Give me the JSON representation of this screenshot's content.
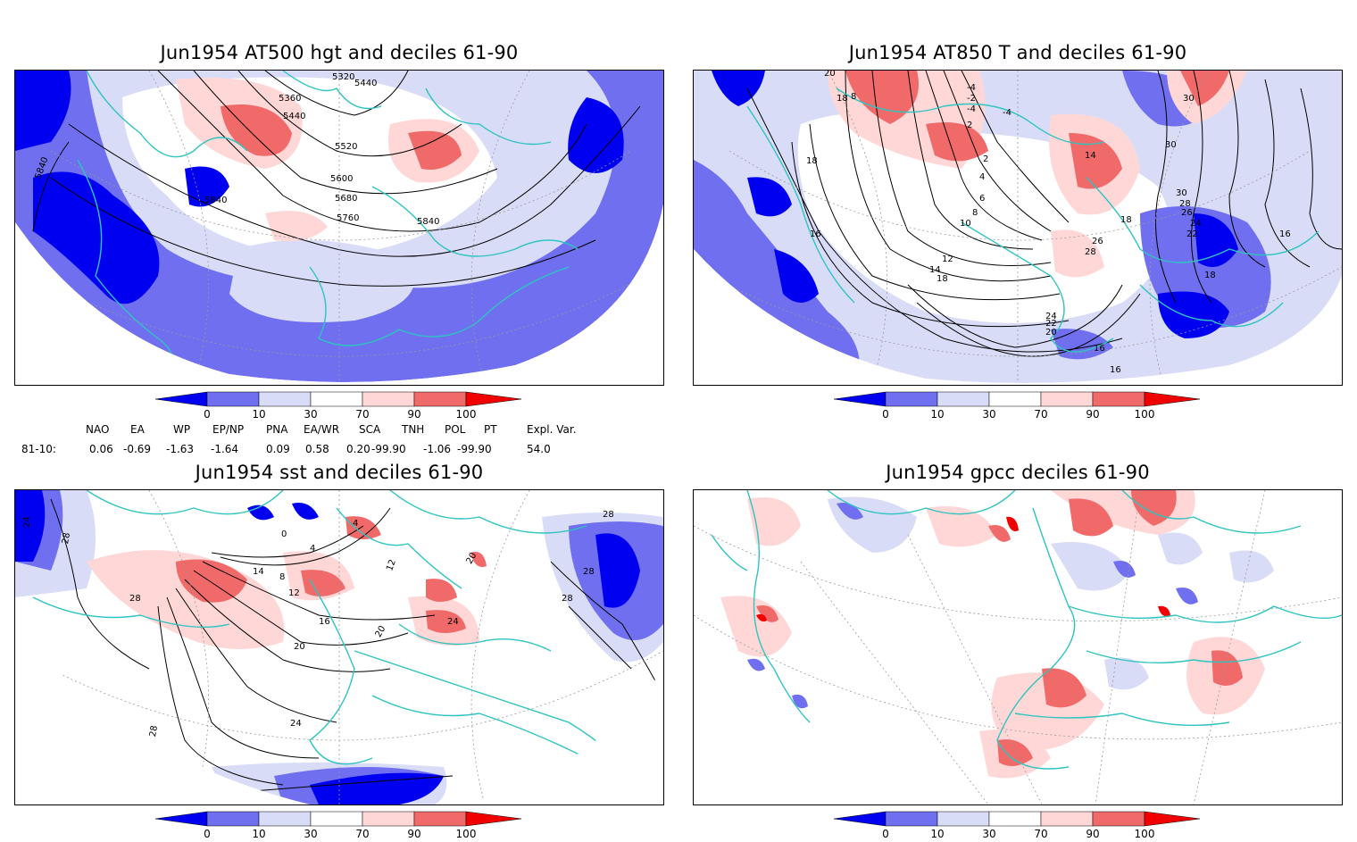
{
  "colors": {
    "d0": "#0000f0",
    "d10": "#6f6ff0",
    "d30": "#d8dcf7",
    "mid": "#ffffff",
    "d70": "#ffd7d7",
    "d90": "#f06a6a",
    "d100": "#f00000",
    "coast": "#2ec4c0",
    "grid": "#9a9a9a"
  },
  "colorbar_ticks": [
    "0",
    "10",
    "30",
    "70",
    "90",
    "100"
  ],
  "panels": [
    {
      "title": "Jun1954 AT500 hgt and deciles 61-90",
      "contour_labels": [
        "5320",
        "5360",
        "5440",
        "5440",
        "5520",
        "5600",
        "5680",
        "5760",
        "5840",
        "5840",
        "5840"
      ]
    },
    {
      "title": "Jun1954 AT850 T and deciles 61-90",
      "contour_labels": [
        "20",
        "18",
        "8",
        "-4",
        "-4",
        "-4",
        "2",
        "2",
        "4",
        "6",
        "8",
        "10",
        "12",
        "14",
        "14",
        "16",
        "16",
        "18",
        "18",
        "18",
        "18",
        "20",
        "22",
        "24",
        "26",
        "26",
        "28",
        "28",
        "30",
        "30",
        "30",
        "-2",
        "24",
        "22",
        "16",
        "16"
      ]
    },
    {
      "title": "Jun1954 sst and deciles 61-90",
      "contour_labels": [
        "24",
        "28",
        "28",
        "28",
        "28",
        "20",
        "20",
        "20",
        "16",
        "14",
        "12",
        "12",
        "8",
        "4",
        "4",
        "0",
        "24",
        "24",
        "28",
        "28"
      ]
    },
    {
      "title": "Jun1954 gpcc deciles 61-90",
      "contour_labels": []
    }
  ],
  "indices": {
    "headers": [
      "NAO",
      "EA",
      "WP",
      "EP/NP",
      "PNA",
      "EA/WR",
      "SCA",
      "TNH",
      "POL",
      "PT",
      "Expl. Var."
    ],
    "row_label": "81-10:",
    "values": [
      "0.06",
      "-0.69",
      "-1.63",
      "-1.64",
      "0.09",
      "0.58",
      "0.20",
      "-99.90",
      "-1.06",
      "-99.90",
      "54.0"
    ]
  }
}
